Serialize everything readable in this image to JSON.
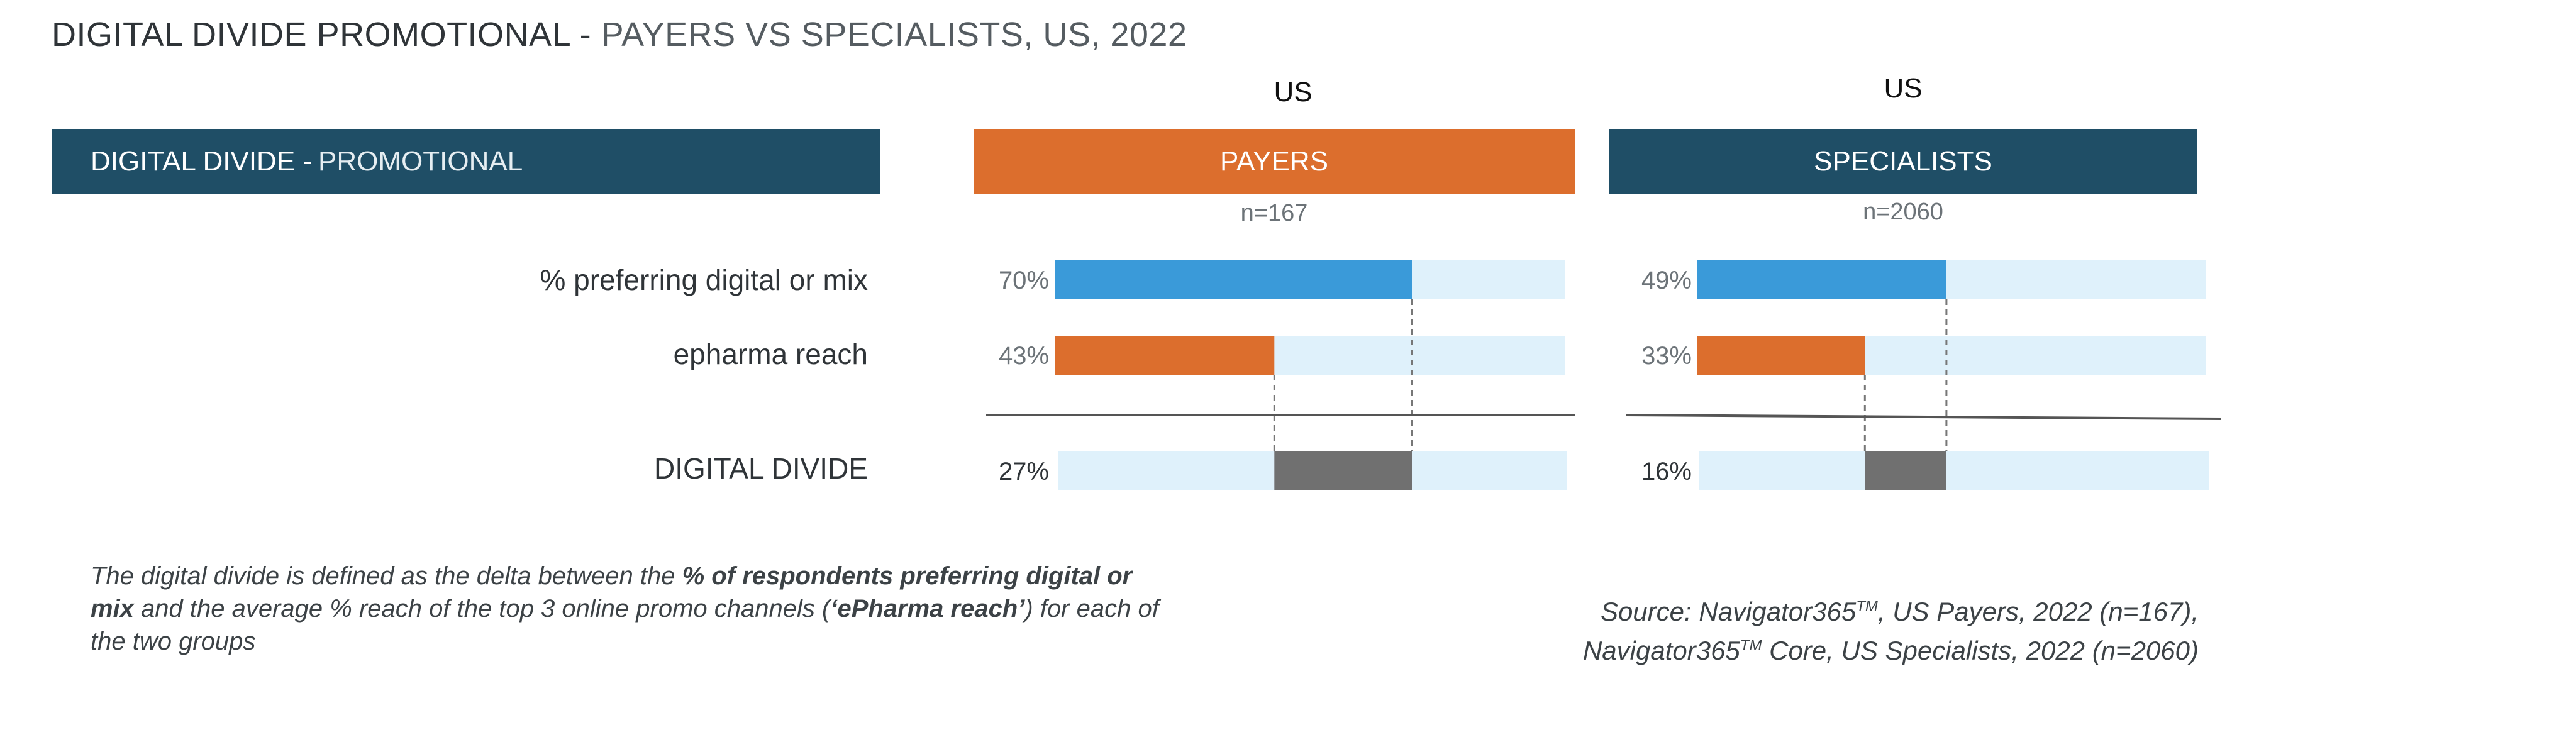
{
  "title": {
    "main": "DIGITAL DIVIDE PROMOTIONAL - ",
    "sub": "PAYERS VS SPECIALISTS, US, 2022"
  },
  "left_banner": {
    "main": "DIGITAL DIVIDE -",
    "sub": "PROMOTIONAL"
  },
  "panels": [
    {
      "region": "US",
      "header": "PAYERS",
      "n": "n=167"
    },
    {
      "region": "US",
      "header": "SPECIALISTS",
      "n": "n=2060"
    }
  ],
  "row_labels": [
    "% preferring digital or mix",
    "epharma reach",
    "DIGITAL DIVIDE"
  ],
  "colors": {
    "digital": "#3a9ad9",
    "epharma": "#dc6e2d",
    "divide": "#707070",
    "track": "#dff1fb",
    "payers_header": "#dc6e2d",
    "specialists_header": "#1f4e66"
  },
  "chart_data": [
    {
      "type": "bar",
      "group": "PAYERS",
      "categories": [
        "% preferring digital or mix",
        "epharma reach",
        "DIGITAL DIVIDE"
      ],
      "values": [
        70,
        43,
        27
      ],
      "value_labels": [
        "70%",
        "43%",
        "27%"
      ],
      "xlim": [
        0,
        100
      ]
    },
    {
      "type": "bar",
      "group": "SPECIALISTS",
      "categories": [
        "% preferring digital or mix",
        "epharma reach",
        "DIGITAL DIVIDE"
      ],
      "values": [
        49,
        33,
        16
      ],
      "value_labels": [
        "49%",
        "33%",
        "16%"
      ],
      "xlim": [
        0,
        100
      ]
    }
  ],
  "footnote": {
    "part1": "The digital divide is defined as the delta between the ",
    "bold1": "% of respondents preferring digital or mix",
    "part2": " and the average % reach of the top 3 online promo channels (",
    "bold2": "‘ePharma reach’",
    "part3": ") for each of the two groups"
  },
  "source": {
    "line1_a": "Source:  Navigator365",
    "line1_tm": "TM",
    "line1_b": ", US Payers, 2022 (n=167),",
    "line2_a": "Navigator365",
    "line2_tm": "TM",
    "line2_b": " Core, US Specialists, 2022 (n=2060)"
  }
}
